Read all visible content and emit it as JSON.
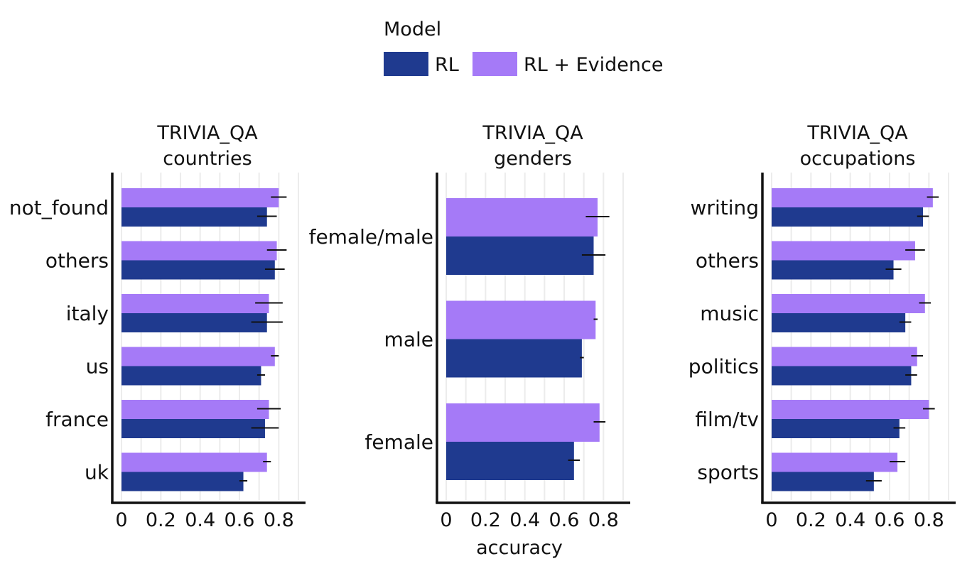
{
  "chart_data": {
    "type": "bar",
    "orientation": "horizontal",
    "legend": {
      "title": "Model",
      "position": "top-center",
      "entries": [
        {
          "name": "RL",
          "color": "#1f3a8f"
        },
        {
          "name": "RL + Evidence",
          "color": "#a57af7"
        }
      ]
    },
    "xlabel": "accuracy",
    "xlim": [
      0,
      0.9
    ],
    "xticks": [
      0,
      0.2,
      0.4,
      0.6,
      0.8
    ],
    "xtick_labels": [
      "0",
      "0.2",
      "0.4",
      "0.6",
      "0.8"
    ],
    "grid": true,
    "panels": [
      {
        "title_line1": "TRIVIA_QA",
        "title_line2": "countries",
        "categories": [
          "not_found",
          "others",
          "italy",
          "us",
          "france",
          "uk"
        ],
        "series": [
          {
            "name": "RL + Evidence",
            "values": [
              0.8,
              0.79,
              0.75,
              0.78,
              0.75,
              0.74
            ],
            "errors": [
              0.04,
              0.05,
              0.07,
              0.02,
              0.06,
              0.02
            ]
          },
          {
            "name": "RL",
            "values": [
              0.74,
              0.78,
              0.74,
              0.71,
              0.73,
              0.62
            ],
            "errors": [
              0.05,
              0.05,
              0.08,
              0.02,
              0.07,
              0.02
            ]
          }
        ]
      },
      {
        "title_line1": "TRIVIA_QA",
        "title_line2": "genders",
        "categories": [
          "female/male",
          "male",
          "female"
        ],
        "series": [
          {
            "name": "RL + Evidence",
            "values": [
              0.77,
              0.76,
              0.78
            ],
            "errors": [
              0.06,
              0.01,
              0.03
            ]
          },
          {
            "name": "RL",
            "values": [
              0.75,
              0.69,
              0.65
            ],
            "errors": [
              0.06,
              0.01,
              0.03
            ]
          }
        ]
      },
      {
        "title_line1": "TRIVIA_QA",
        "title_line2": "occupations",
        "categories": [
          "writing",
          "others",
          "music",
          "politics",
          "film/tv",
          "sports"
        ],
        "series": [
          {
            "name": "RL + Evidence",
            "values": [
              0.82,
              0.73,
              0.78,
              0.74,
              0.8,
              0.64
            ],
            "errors": [
              0.03,
              0.05,
              0.03,
              0.03,
              0.03,
              0.04
            ]
          },
          {
            "name": "RL",
            "values": [
              0.77,
              0.62,
              0.68,
              0.71,
              0.65,
              0.52
            ],
            "errors": [
              0.03,
              0.04,
              0.03,
              0.03,
              0.03,
              0.04
            ]
          }
        ]
      }
    ]
  }
}
